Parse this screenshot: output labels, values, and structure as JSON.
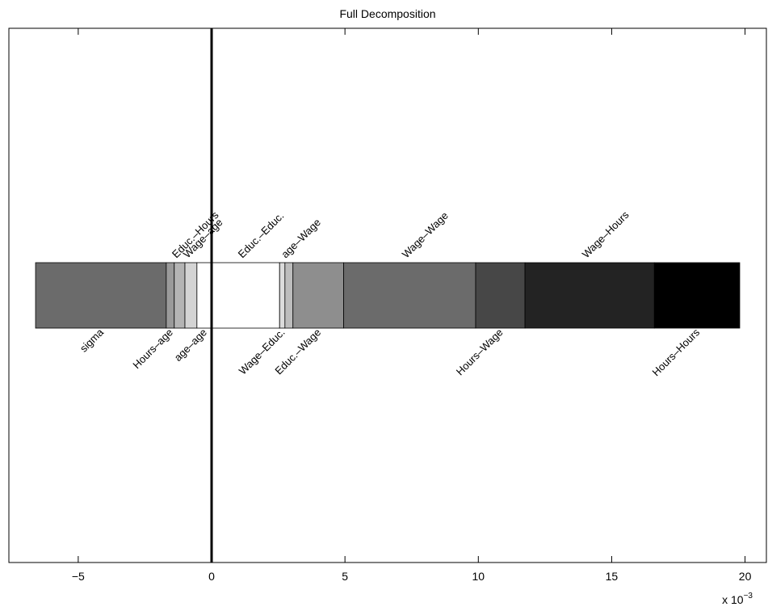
{
  "chart_data": {
    "type": "bar",
    "orientation": "horizontal-stacked",
    "title": "Full Decomposition",
    "xlabel": "",
    "ylabel": "",
    "xlim": [
      -7.6,
      20.8
    ],
    "x_scale_label": "x 10",
    "x_scale_exponent": "−3",
    "xticks": [
      {
        "value": -5,
        "label": "−5"
      },
      {
        "value": 0,
        "label": "0"
      },
      {
        "value": 5,
        "label": "5"
      },
      {
        "value": 10,
        "label": "10"
      },
      {
        "value": 15,
        "label": "15"
      },
      {
        "value": 20,
        "label": "20"
      }
    ],
    "grid": false,
    "zero_line": true,
    "segments": [
      {
        "name": "sigma",
        "start": -6.6,
        "end": -1.7,
        "color": "#6b6b6b",
        "label_side": "below"
      },
      {
        "name": "Hours–age",
        "start": -1.7,
        "end": -1.4,
        "color": "#9a9a9a",
        "label_side": "below"
      },
      {
        "name": "Educ.–Hours",
        "start": -1.4,
        "end": -1.0,
        "color": "#b4b4b4",
        "label_side": "above"
      },
      {
        "name": "Wage–age",
        "start": -1.0,
        "end": -0.55,
        "color": "#d4d4d4",
        "label_side": "above"
      },
      {
        "name": "age–age",
        "start": -0.55,
        "end": 0.0,
        "color": "#ffffff",
        "label_side": "below"
      },
      {
        "name": "Educ.–Educ.",
        "start": 0.0,
        "end": 2.55,
        "color": "#ffffff",
        "label_side": "above"
      },
      {
        "name": "Wage–Educ.",
        "start": 2.55,
        "end": 2.75,
        "color": "#dcdcdc",
        "label_side": "below"
      },
      {
        "name": "age–Wage",
        "start": 2.75,
        "end": 3.05,
        "color": "#bdbdbd",
        "label_side": "above"
      },
      {
        "name": "Educ.–Wage",
        "start": 3.05,
        "end": 4.95,
        "color": "#8e8e8e",
        "label_side": "below"
      },
      {
        "name": "Wage–Wage",
        "start": 4.95,
        "end": 9.9,
        "color": "#6b6b6b",
        "label_side": "above"
      },
      {
        "name": "Hours–Wage",
        "start": 9.9,
        "end": 11.75,
        "color": "#474747",
        "label_side": "below"
      },
      {
        "name": "Wage–Hours",
        "start": 11.75,
        "end": 16.6,
        "color": "#232323",
        "label_side": "above"
      },
      {
        "name": "Hours–Hours",
        "start": 16.6,
        "end": 19.8,
        "color": "#000000",
        "label_side": "below"
      }
    ]
  }
}
